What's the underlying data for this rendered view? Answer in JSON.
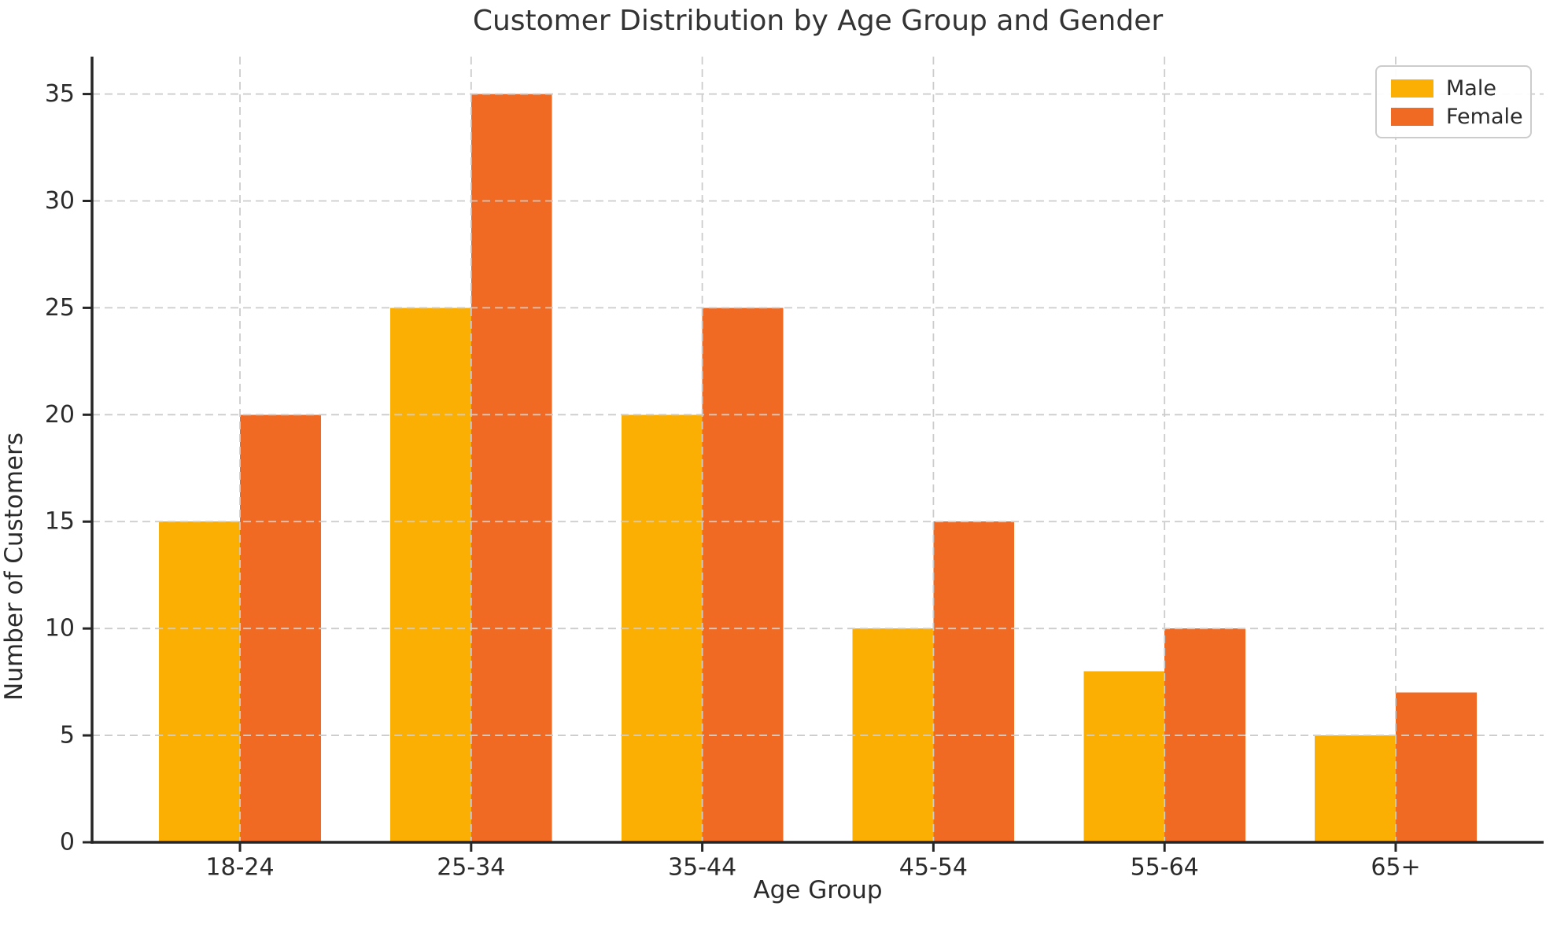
{
  "chart_data": {
    "type": "bar",
    "title": "Customer Distribution by Age Group and Gender",
    "xlabel": "Age Group",
    "ylabel": "Number of Customers",
    "categories": [
      "18-24",
      "25-34",
      "35-44",
      "45-54",
      "55-64",
      "65+"
    ],
    "series": [
      {
        "name": "Male",
        "color": "#FCAF03",
        "values": [
          15,
          25,
          20,
          10,
          8,
          5
        ]
      },
      {
        "name": "Female",
        "color": "#F06A23",
        "values": [
          20,
          35,
          25,
          15,
          10,
          7
        ]
      }
    ],
    "ylim": [
      0,
      36.75
    ],
    "yticks": [
      0,
      5,
      10,
      15,
      20,
      25,
      30,
      35
    ],
    "bar_width": 0.35,
    "grid": {
      "visible": true,
      "style": "dashed",
      "color": "#cccccc",
      "over_bars": true
    },
    "legend": {
      "position": "upper right",
      "labels": [
        "Male",
        "Female"
      ]
    },
    "axis_color": "#262626",
    "tick_label_color": "#2b2b2b",
    "title_color": "#333333",
    "background": "#ffffff"
  }
}
